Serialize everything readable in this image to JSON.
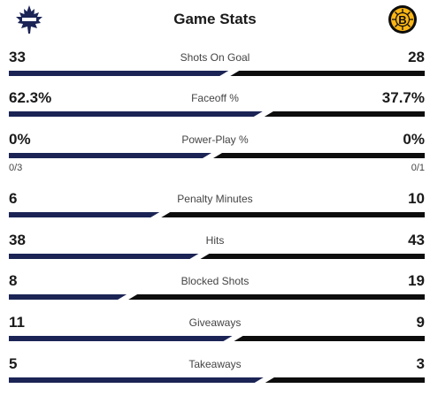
{
  "header": {
    "title": "Game Stats",
    "home_logo": "maple-leafs-logo",
    "away_logo": "bruins-logo"
  },
  "colors": {
    "home": "#1b2455",
    "away": "#0d0d0d",
    "bruins_gold": "#fcb514"
  },
  "stats": [
    {
      "label": "Shots On Goal",
      "home": "33",
      "away": "28",
      "home_share": 0.541
    },
    {
      "label": "Faceoff %",
      "home": "62.3%",
      "away": "37.7%",
      "home_share": 0.623
    },
    {
      "label": "Power-Play %",
      "home": "0%",
      "away": "0%",
      "home_share": 0.5,
      "home_sub": "0/3",
      "away_sub": "0/1"
    },
    {
      "label": "Penalty Minutes",
      "home": "6",
      "away": "10",
      "home_share": 0.375
    },
    {
      "label": "Hits",
      "home": "38",
      "away": "43",
      "home_share": 0.469
    },
    {
      "label": "Blocked Shots",
      "home": "8",
      "away": "19",
      "home_share": 0.296
    },
    {
      "label": "Giveaways",
      "home": "11",
      "away": "9",
      "home_share": 0.55
    },
    {
      "label": "Takeaways",
      "home": "5",
      "away": "3",
      "home_share": 0.625
    }
  ]
}
